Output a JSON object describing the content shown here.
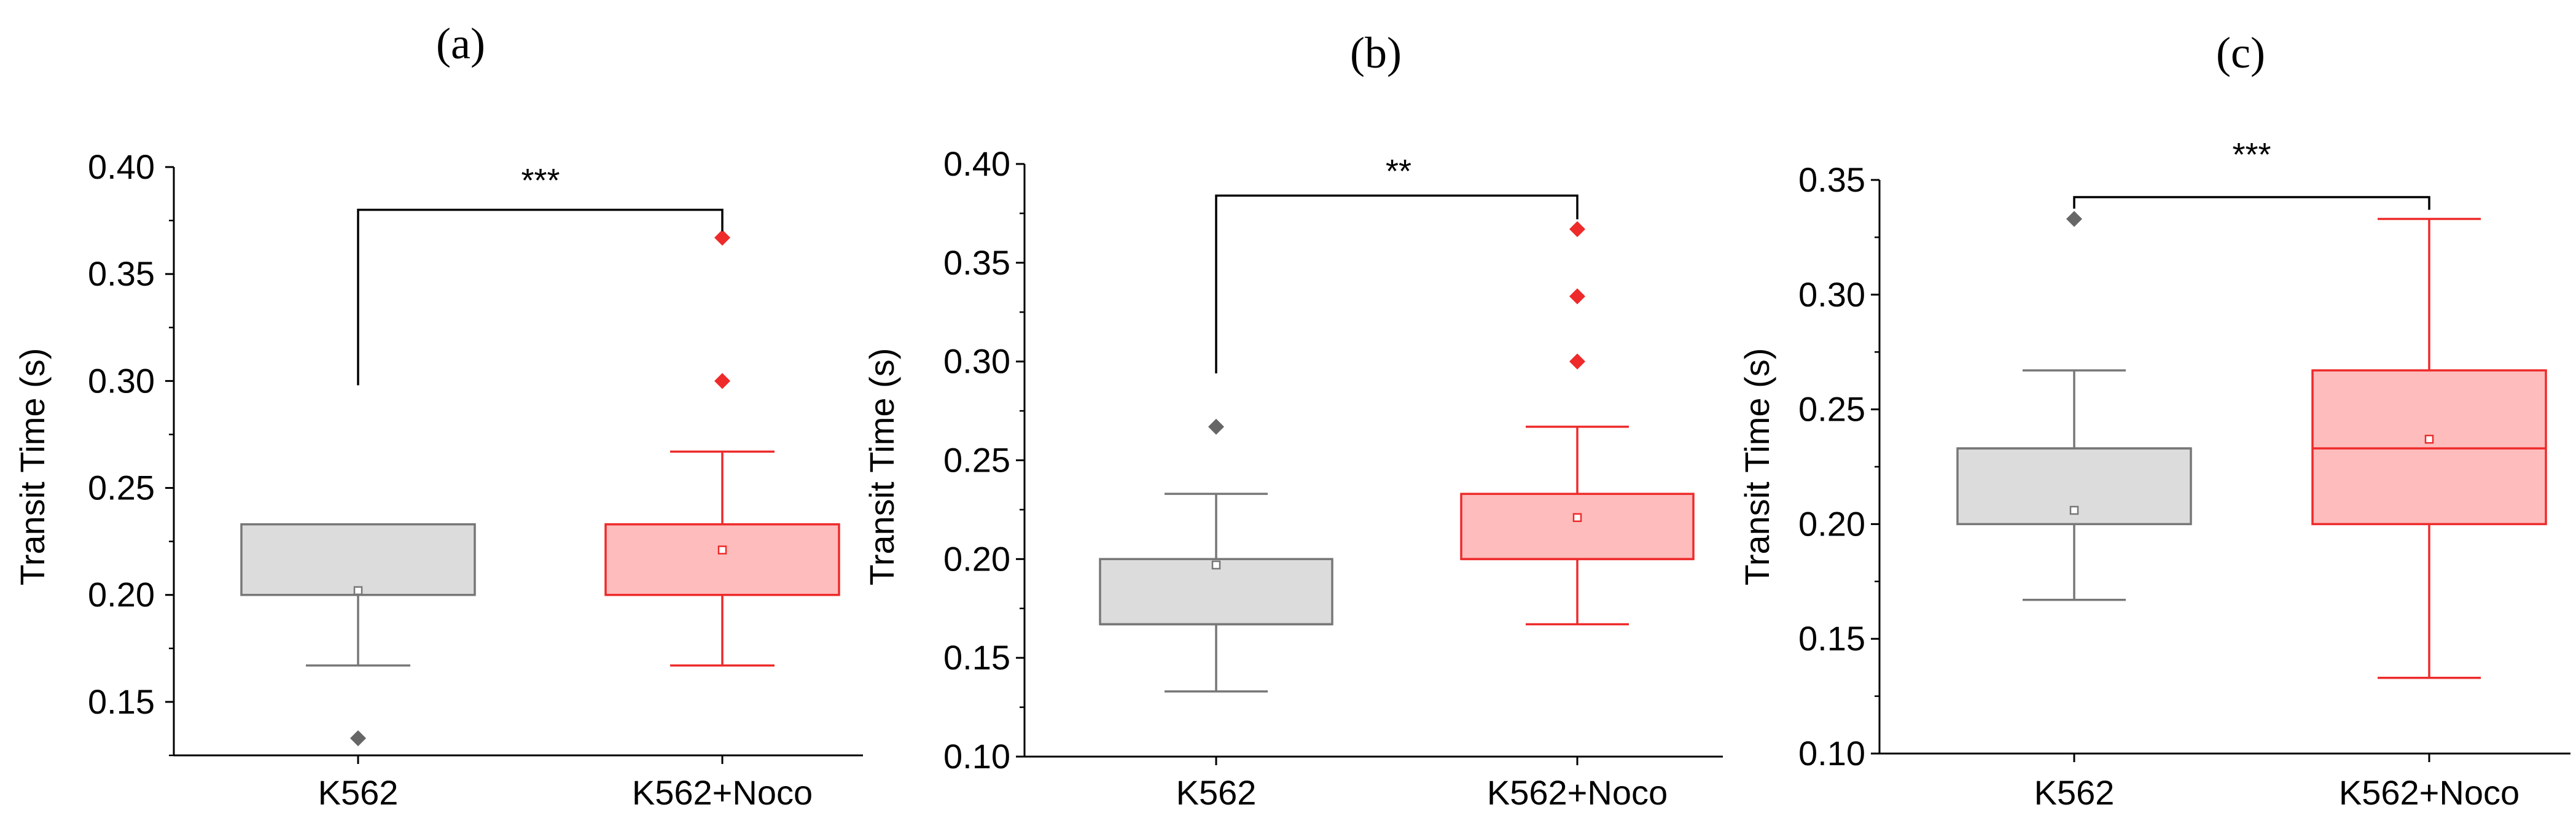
{
  "chart_data": [
    {
      "type": "box",
      "panel_label": "(a)",
      "ylabel": "Transit Time (s)",
      "ylim": [
        0.125,
        0.4
      ],
      "yticks": [
        0.15,
        0.2,
        0.25,
        0.3,
        0.35,
        0.4
      ],
      "ytick_labels": [
        "0.15",
        "0.20",
        "0.25",
        "0.30",
        "0.35",
        "0.40"
      ],
      "categories": [
        "K562",
        "K562+Noco"
      ],
      "boxes": [
        {
          "name": "K562",
          "whisker_low": 0.167,
          "q1": 0.2,
          "median": 0.2,
          "q3": 0.233,
          "whisker_high": 0.233,
          "mean": 0.202,
          "outliers": [
            0.133
          ],
          "fill": "#dcdcdc",
          "stroke": "#777777",
          "marker": "#666666"
        },
        {
          "name": "K562+Noco",
          "whisker_low": 0.167,
          "q1": 0.2,
          "median": 0.2,
          "q3": 0.233,
          "whisker_high": 0.267,
          "mean": 0.221,
          "outliers": [
            0.3,
            0.367
          ],
          "fill": "#ffbcbc",
          "stroke": "#ee2a2a",
          "marker": "#ee2a2a"
        }
      ],
      "significance": {
        "label": "***",
        "bracket_y": 0.38,
        "left_start": 0.298,
        "right_start": 0.37
      }
    },
    {
      "type": "box",
      "panel_label": "(b)",
      "ylabel": "Transit Time (s)",
      "ylim": [
        0.1,
        0.4
      ],
      "yticks": [
        0.1,
        0.15,
        0.2,
        0.25,
        0.3,
        0.35,
        0.4
      ],
      "ytick_labels": [
        "0.10",
        "0.15",
        "0.20",
        "0.25",
        "0.30",
        "0.35",
        "0.40"
      ],
      "categories": [
        "K562",
        "K562+Noco"
      ],
      "boxes": [
        {
          "name": "K562",
          "whisker_low": 0.133,
          "q1": 0.167,
          "median": 0.167,
          "q3": 0.2,
          "whisker_high": 0.233,
          "mean": 0.197,
          "outliers": [
            0.267
          ],
          "fill": "#dcdcdc",
          "stroke": "#777777",
          "marker": "#666666"
        },
        {
          "name": "K562+Noco",
          "whisker_low": 0.167,
          "q1": 0.2,
          "median": 0.2,
          "q3": 0.233,
          "whisker_high": 0.267,
          "mean": 0.221,
          "outliers": [
            0.3,
            0.333,
            0.367
          ],
          "fill": "#ffbcbc",
          "stroke": "#ee2a2a",
          "marker": "#ee2a2a"
        }
      ],
      "significance": {
        "label": "**",
        "bracket_y": 0.384,
        "left_start": 0.294,
        "right_start": 0.372
      }
    },
    {
      "type": "box",
      "panel_label": "(c)",
      "ylabel": "Transit Time (s)",
      "ylim": [
        0.1,
        0.35
      ],
      "yticks": [
        0.1,
        0.15,
        0.2,
        0.25,
        0.3,
        0.35
      ],
      "ytick_labels": [
        "0.10",
        "0.15",
        "0.20",
        "0.25",
        "0.30",
        "0.35"
      ],
      "categories": [
        "K562",
        "K562+Noco"
      ],
      "boxes": [
        {
          "name": "K562",
          "whisker_low": 0.167,
          "q1": 0.2,
          "median": 0.233,
          "q3": 0.233,
          "whisker_high": 0.267,
          "mean": 0.206,
          "outliers": [
            0.333
          ],
          "fill": "#dcdcdc",
          "stroke": "#777777",
          "marker": "#666666"
        },
        {
          "name": "K562+Noco",
          "whisker_low": 0.133,
          "q1": 0.2,
          "median": 0.233,
          "q3": 0.267,
          "whisker_high": 0.333,
          "mean": 0.237,
          "outliers": [],
          "fill": "#ffbcbc",
          "stroke": "#ee2a2a",
          "marker": "#ee2a2a"
        }
      ],
      "significance": {
        "label": "***",
        "bracket_y": 0.3425,
        "left_start": 0.3375,
        "right_start": 0.337
      }
    }
  ]
}
